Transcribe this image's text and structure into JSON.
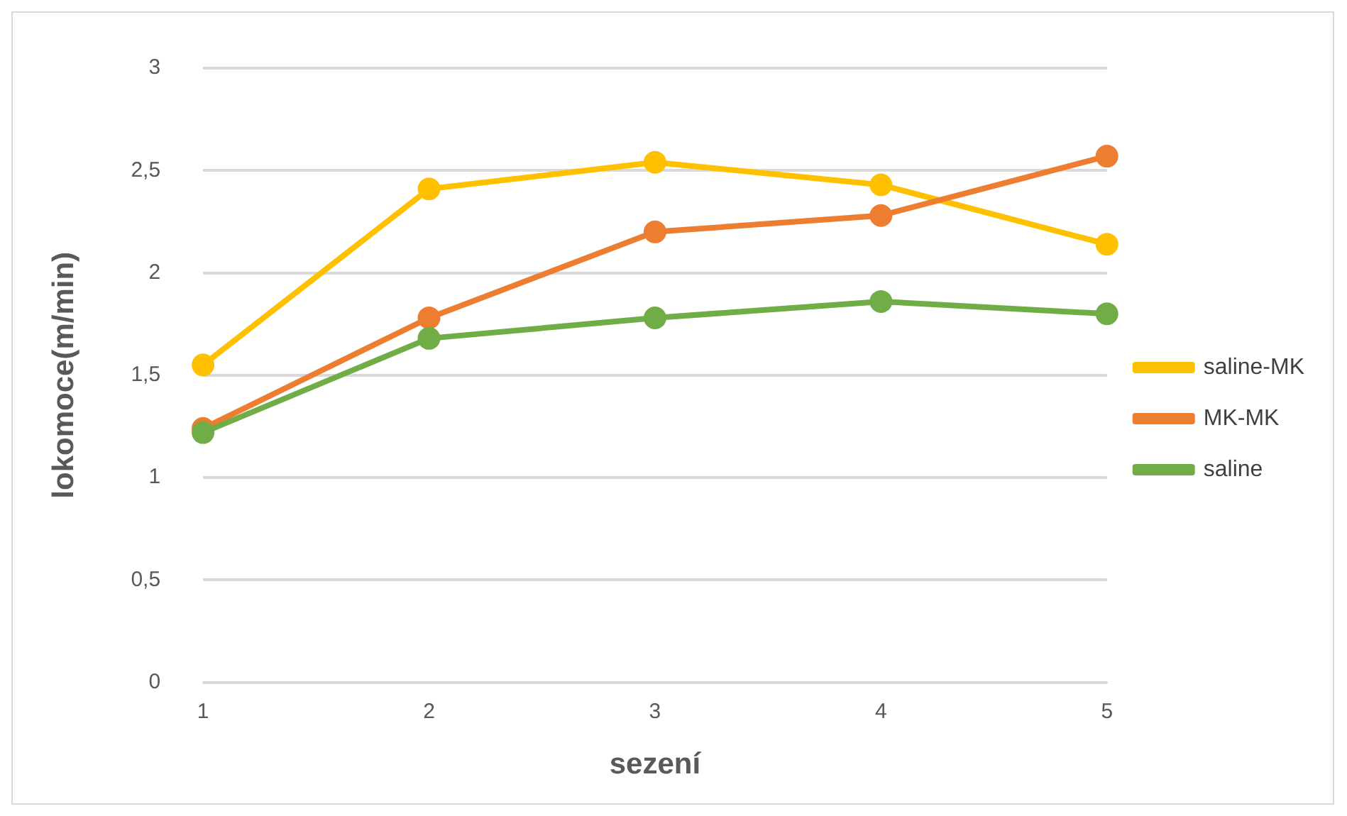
{
  "chart_data": {
    "type": "line",
    "xlabel": "sezení",
    "ylabel": "lokomoce(m/min)",
    "categories": [
      "1",
      "2",
      "3",
      "4",
      "5"
    ],
    "series": [
      {
        "name": "saline-MK",
        "color": "#ffc000",
        "values": [
          1.55,
          2.41,
          2.54,
          2.43,
          2.14
        ]
      },
      {
        "name": "MK-MK",
        "color": "#ed7d31",
        "values": [
          1.24,
          1.78,
          2.2,
          2.28,
          2.57
        ]
      },
      {
        "name": "saline",
        "color": "#70ad47",
        "values": [
          1.22,
          1.68,
          1.78,
          1.86,
          1.8
        ]
      }
    ],
    "ylim": [
      0,
      3
    ],
    "yticks": [
      0,
      {
        "value": 0.5,
        "label": "0,5"
      },
      1,
      {
        "value": 1.5,
        "label": "1,5"
      },
      2,
      {
        "value": 2.5,
        "label": "2,5"
      },
      3
    ],
    "grid": "y",
    "legend": "right",
    "marker": "circle",
    "line_style": "solid"
  }
}
